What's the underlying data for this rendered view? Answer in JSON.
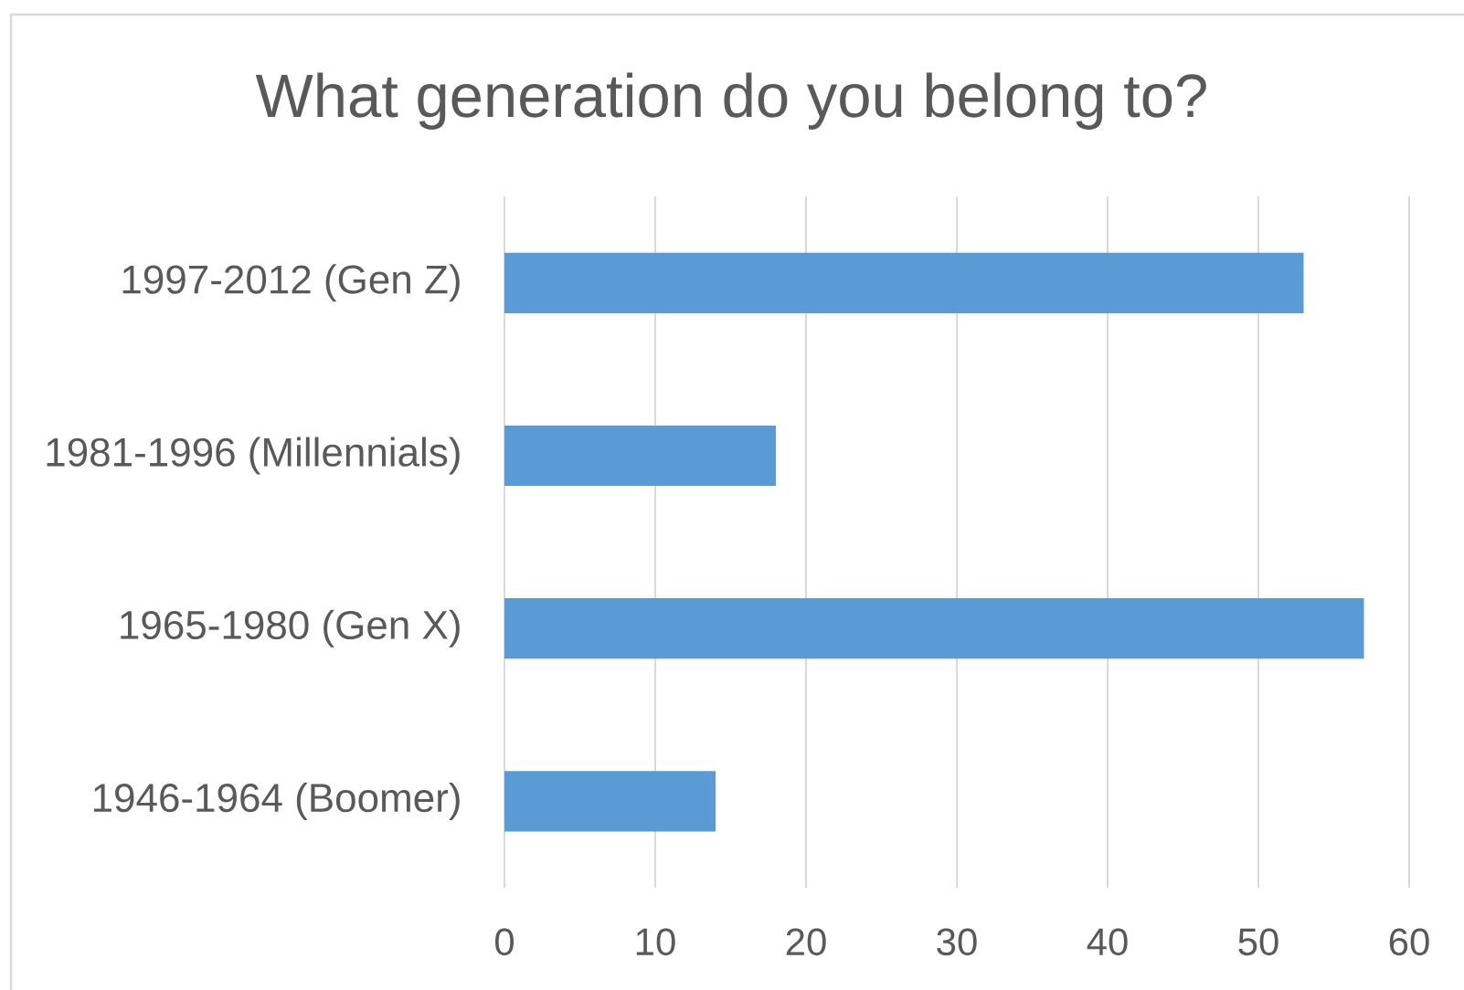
{
  "chart_data": {
    "type": "bar",
    "orientation": "horizontal",
    "title": "What generation do you belong to?",
    "categories": [
      "1997-2012 (Gen Z)",
      "1981-1996 (Millennials)",
      "1965-1980 (Gen X)",
      "1946-1964 (Boomer)"
    ],
    "values": [
      53,
      18,
      57,
      14
    ],
    "color": "#5b9bd5",
    "xlim": [
      0,
      60
    ],
    "xticks": [
      0,
      10,
      20,
      30,
      40,
      50,
      60
    ],
    "grid": "x"
  }
}
